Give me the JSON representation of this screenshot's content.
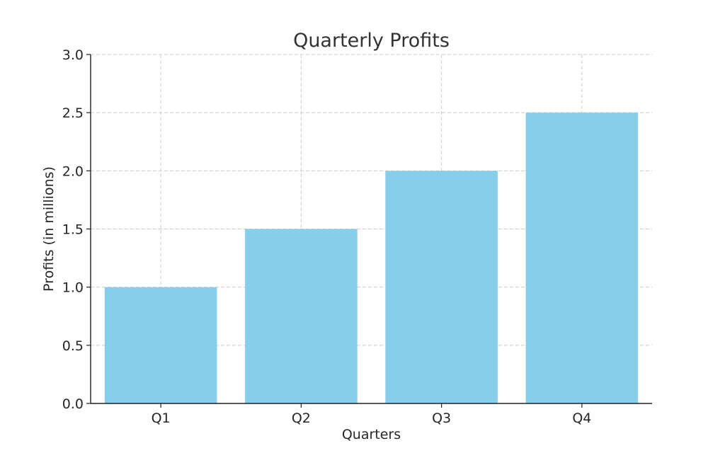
{
  "chart_data": {
    "type": "bar",
    "title": "Quarterly Profits",
    "xlabel": "Quarters",
    "ylabel": "Profits (in millions)",
    "categories": [
      "Q1",
      "Q2",
      "Q3",
      "Q4"
    ],
    "values": [
      1.0,
      1.5,
      2.0,
      2.5
    ],
    "ylim": [
      0,
      3.0
    ],
    "yticks": [
      "0.0",
      "0.5",
      "1.0",
      "1.5",
      "2.0",
      "2.5",
      "3.0"
    ],
    "grid": true,
    "bar_color": "#87CEEB"
  }
}
